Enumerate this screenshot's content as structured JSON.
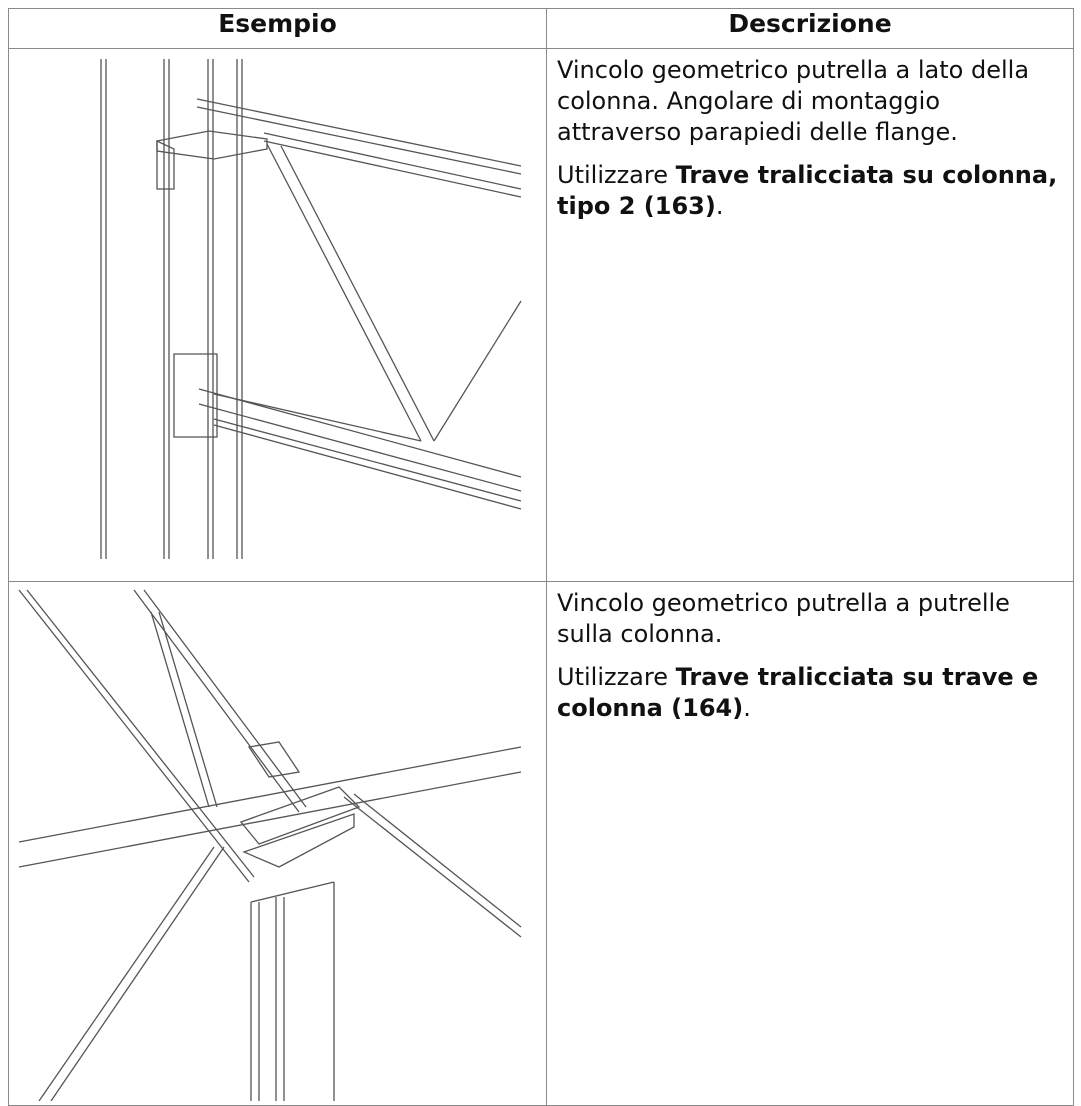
{
  "table": {
    "headers": [
      "Esempio",
      "Descrizione"
    ],
    "rows": [
      {
        "description": "Vincolo geometrico putrella a lato della colonna. Angolare di montaggio attraverso parapiedi delle flange.",
        "use_prefix": "Utilizzare",
        "use_link": "Trave tralicciata su colonna, tipo 2 (163)",
        "use_suffix": "."
      },
      {
        "description": "Vincolo geometrico putrella a putrelle sulla colonna.",
        "use_prefix": "Utilizzare",
        "use_link": "Trave tralicciata su trave e colonna (164)",
        "use_suffix": "."
      }
    ]
  }
}
